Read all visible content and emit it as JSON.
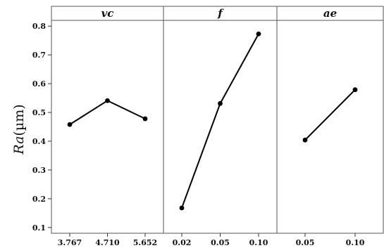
{
  "chart_data": {
    "type": "line",
    "ylabel": "Ra(µm)",
    "ylabel_italic_part": "Ra",
    "ylabel_unit_part": "(µm)",
    "ylim": [
      0.08,
      0.82
    ],
    "yticks": [
      0.1,
      0.2,
      0.3,
      0.4,
      0.5,
      0.6,
      0.7,
      0.8
    ],
    "ytick_labels": [
      "0.1",
      "0.2",
      "0.3",
      "0.4",
      "0.5",
      "0.6",
      "0.7",
      "0.8"
    ],
    "panels": [
      {
        "title": "vc",
        "categories": [
          "3.767",
          "4.710",
          "5.652"
        ],
        "values": [
          0.458,
          0.541,
          0.478
        ]
      },
      {
        "title": "f",
        "categories": [
          "0.02",
          "0.05",
          "0.10"
        ],
        "values": [
          0.168,
          0.531,
          0.773
        ]
      },
      {
        "title": "ae",
        "categories": [
          "0.05",
          "0.10"
        ],
        "values": [
          0.404,
          0.579
        ]
      }
    ],
    "line_color": "#000000"
  }
}
